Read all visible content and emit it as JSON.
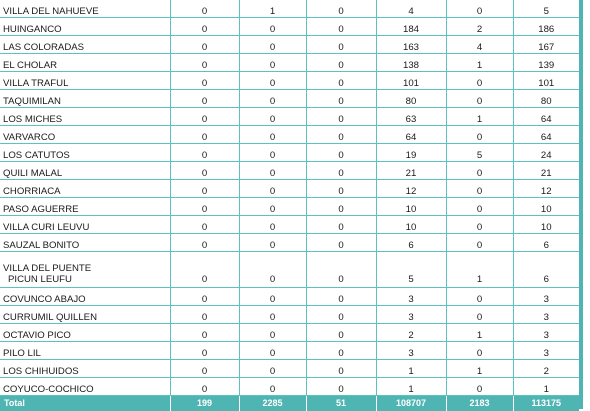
{
  "rows": [
    {
      "name": "VILLA DEL NAHUEVE",
      "c1": "0",
      "c2": "1",
      "c3": "0",
      "c4": "4",
      "c5": "0",
      "c6": "5"
    },
    {
      "name": "HUINGANCO",
      "c1": "0",
      "c2": "0",
      "c3": "0",
      "c4": "184",
      "c5": "2",
      "c6": "186"
    },
    {
      "name": "LAS COLORADAS",
      "c1": "0",
      "c2": "0",
      "c3": "0",
      "c4": "163",
      "c5": "4",
      "c6": "167"
    },
    {
      "name": "EL CHOLAR",
      "c1": "0",
      "c2": "0",
      "c3": "0",
      "c4": "138",
      "c5": "1",
      "c6": "139"
    },
    {
      "name": "VILLA TRAFUL",
      "c1": "0",
      "c2": "0",
      "c3": "0",
      "c4": "101",
      "c5": "0",
      "c6": "101"
    },
    {
      "name": "TAQUIMILAN",
      "c1": "0",
      "c2": "0",
      "c3": "0",
      "c4": "80",
      "c5": "0",
      "c6": "80"
    },
    {
      "name": "LOS MICHES",
      "c1": "0",
      "c2": "0",
      "c3": "0",
      "c4": "63",
      "c5": "1",
      "c6": "64"
    },
    {
      "name": "VARVARCO",
      "c1": "0",
      "c2": "0",
      "c3": "0",
      "c4": "64",
      "c5": "0",
      "c6": "64"
    },
    {
      "name": "LOS CATUTOS",
      "c1": "0",
      "c2": "0",
      "c3": "0",
      "c4": "19",
      "c5": "5",
      "c6": "24"
    },
    {
      "name": "QUILI MALAL",
      "c1": "0",
      "c2": "0",
      "c3": "0",
      "c4": "21",
      "c5": "0",
      "c6": "21"
    },
    {
      "name": "CHORRIACA",
      "c1": "0",
      "c2": "0",
      "c3": "0",
      "c4": "12",
      "c5": "0",
      "c6": "12"
    },
    {
      "name": "PASO AGUERRE",
      "c1": "0",
      "c2": "0",
      "c3": "0",
      "c4": "10",
      "c5": "0",
      "c6": "10"
    },
    {
      "name": "VILLA CURI LEUVU",
      "c1": "0",
      "c2": "0",
      "c3": "0",
      "c4": "10",
      "c5": "0",
      "c6": "10"
    },
    {
      "name": "SAUZAL BONITO",
      "c1": "0",
      "c2": "0",
      "c3": "0",
      "c4": "6",
      "c5": "0",
      "c6": "6"
    },
    {
      "name": "VILLA DEL PUENTE",
      "name2": "PICUN LEUFU",
      "c1": "0",
      "c2": "0",
      "c3": "0",
      "c4": "5",
      "c5": "1",
      "c6": "6"
    },
    {
      "name": "COVUNCO ABAJO",
      "c1": "0",
      "c2": "0",
      "c3": "0",
      "c4": "3",
      "c5": "0",
      "c6": "3"
    },
    {
      "name": "CURRUMIL QUILLEN",
      "c1": "0",
      "c2": "0",
      "c3": "0",
      "c4": "3",
      "c5": "0",
      "c6": "3"
    },
    {
      "name": "OCTAVIO PICO",
      "c1": "0",
      "c2": "0",
      "c3": "0",
      "c4": "2",
      "c5": "1",
      "c6": "3"
    },
    {
      "name": "PILO LIL",
      "c1": "0",
      "c2": "0",
      "c3": "0",
      "c4": "3",
      "c5": "0",
      "c6": "3"
    },
    {
      "name": "LOS CHIHUIDOS",
      "c1": "0",
      "c2": "0",
      "c3": "0",
      "c4": "1",
      "c5": "1",
      "c6": "2"
    },
    {
      "name": "COYUCO-COCHICO",
      "c1": "0",
      "c2": "0",
      "c3": "0",
      "c4": "1",
      "c5": "0",
      "c6": "1"
    }
  ],
  "total": {
    "label": "Total",
    "c1": "199",
    "c2": "2285",
    "c3": "51",
    "c4": "108707",
    "c5": "2183",
    "c6": "113175"
  }
}
